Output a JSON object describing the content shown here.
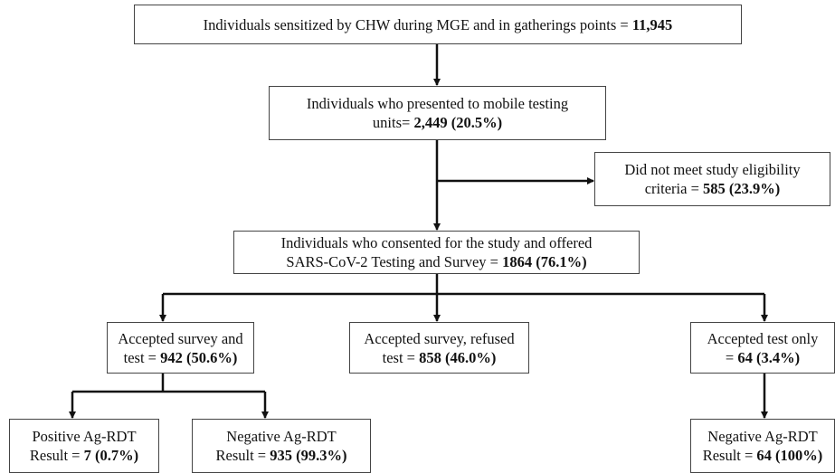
{
  "nodes": [
    {
      "lines": [
        "Individuals sensitized by CHW during MGE and in gatherings points ="
      ],
      "value": "11,945"
    },
    {
      "lines": [
        "Individuals who presented to mobile testing",
        "units="
      ],
      "value": "2,449 (20.5%)"
    },
    {
      "lines": [
        "Did not meet study eligibility",
        "criteria ="
      ],
      "value": "585 (23.9%)"
    },
    {
      "lines": [
        "Individuals who consented for the study and offered",
        "SARS-CoV-2 Testing and Survey ="
      ],
      "value": "1864 (76.1%)"
    },
    {
      "lines": [
        "Accepted survey and",
        "test ="
      ],
      "value": "942 (50.6%)"
    },
    {
      "lines": [
        "Accepted survey, refused",
        "test ="
      ],
      "value": "858 (46.0%)"
    },
    {
      "lines": [
        "Accepted test only",
        "="
      ],
      "value": "64 (3.4%)"
    },
    {
      "lines": [
        "Positive Ag-RDT",
        "Result ="
      ],
      "value": "7 (0.7%)"
    },
    {
      "lines": [
        "Negative Ag-RDT",
        "Result ="
      ],
      "value": "935 (99.3%)"
    },
    {
      "lines": [
        "Negative Ag-RDT",
        "Result ="
      ],
      "value": "64 (100%)"
    }
  ]
}
